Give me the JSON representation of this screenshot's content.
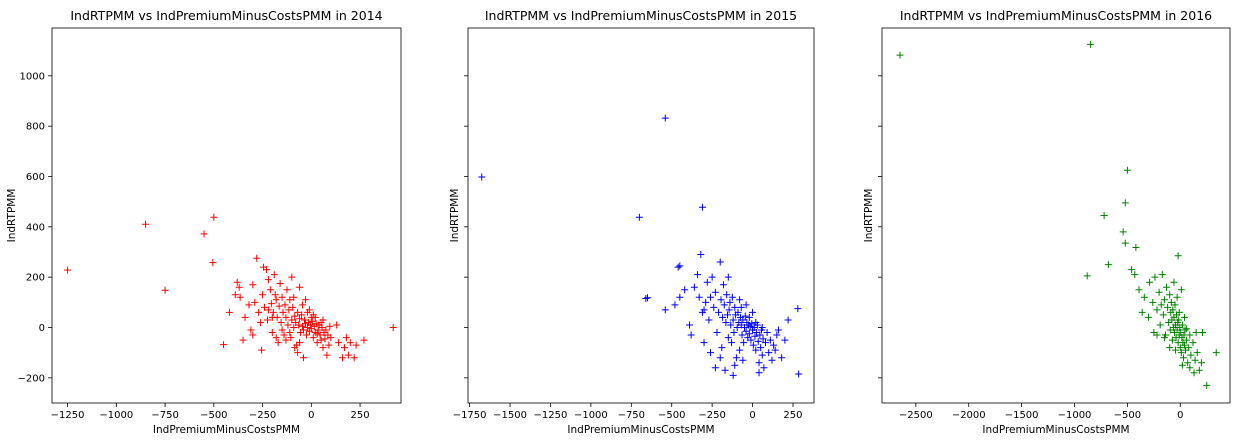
{
  "chart_data": [
    {
      "type": "scatter",
      "title": "IndRTPMM vs IndPremiumMinusCostsPMM in 2014",
      "xlabel": "IndPremiumMinusCostsPMM",
      "ylabel": "IndRTPMM",
      "xlim": [
        -1330,
        460
      ],
      "ylim": [
        -300,
        1190
      ],
      "xticks": [
        -1250,
        -1000,
        -750,
        -500,
        -250,
        0,
        250
      ],
      "yticks": [
        -200,
        0,
        200,
        400,
        600,
        800,
        1000
      ],
      "marker": "+",
      "color": "#ff0000",
      "points": [
        [
          -1250,
          228
        ],
        [
          -850,
          410
        ],
        [
          -750,
          148
        ],
        [
          -550,
          372
        ],
        [
          -500,
          438
        ],
        [
          -505,
          258
        ],
        [
          -450,
          -68
        ],
        [
          -420,
          60
        ],
        [
          -390,
          130
        ],
        [
          -380,
          180
        ],
        [
          -370,
          160
        ],
        [
          -365,
          120
        ],
        [
          -340,
          40
        ],
        [
          -320,
          90
        ],
        [
          -310,
          -10
        ],
        [
          -300,
          170
        ],
        [
          -290,
          100
        ],
        [
          -280,
          275
        ],
        [
          -270,
          60
        ],
        [
          -260,
          20
        ],
        [
          -255,
          -90
        ],
        [
          -250,
          130
        ],
        [
          -245,
          240
        ],
        [
          -240,
          80
        ],
        [
          -230,
          230
        ],
        [
          -225,
          30
        ],
        [
          -220,
          190
        ],
        [
          -210,
          150
        ],
        [
          -205,
          95
        ],
        [
          -200,
          -20
        ],
        [
          -195,
          60
        ],
        [
          -190,
          210
        ],
        [
          -185,
          130
        ],
        [
          -180,
          110
        ],
        [
          -175,
          40
        ],
        [
          -170,
          -60
        ],
        [
          -165,
          85
        ],
        [
          -160,
          175
        ],
        [
          -155,
          20
        ],
        [
          -150,
          120
        ],
        [
          -145,
          60
        ],
        [
          -140,
          -30
        ],
        [
          -135,
          90
        ],
        [
          -130,
          40
        ],
        [
          -125,
          150
        ],
        [
          -120,
          10
        ],
        [
          -115,
          70
        ],
        [
          -110,
          110
        ],
        [
          -105,
          -40
        ],
        [
          -100,
          30
        ],
        [
          -95,
          80
        ],
        [
          -90,
          0
        ],
        [
          -85,
          45
        ],
        [
          -80,
          20
        ],
        [
          -75,
          -70
        ],
        [
          -70,
          60
        ],
        [
          -65,
          10
        ],
        [
          -60,
          35
        ],
        [
          -55,
          -20
        ],
        [
          -50,
          50
        ],
        [
          -45,
          5
        ],
        [
          -40,
          -10
        ],
        [
          -35,
          30
        ],
        [
          -30,
          15
        ],
        [
          -25,
          -30
        ],
        [
          -20,
          0
        ],
        [
          -15,
          20
        ],
        [
          -10,
          -15
        ],
        [
          -5,
          10
        ],
        [
          0,
          -5
        ],
        [
          5,
          25
        ],
        [
          10,
          -40
        ],
        [
          15,
          5
        ],
        [
          20,
          -20
        ],
        [
          25,
          15
        ],
        [
          30,
          -60
        ],
        [
          35,
          -10
        ],
        [
          40,
          10
        ],
        [
          45,
          -30
        ],
        [
          50,
          -50
        ],
        [
          55,
          0
        ],
        [
          60,
          -80
        ],
        [
          65,
          -20
        ],
        [
          70,
          -45
        ],
        [
          75,
          -10
        ],
        [
          80,
          -110
        ],
        [
          85,
          -30
        ],
        [
          90,
          -70
        ],
        [
          95,
          5
        ],
        [
          100,
          -40
        ],
        [
          -60,
          160
        ],
        [
          -30,
          110
        ],
        [
          -10,
          70
        ],
        [
          -100,
          200
        ],
        [
          -70,
          -100
        ],
        [
          -40,
          -120
        ],
        [
          -130,
          -50
        ],
        [
          -20,
          60
        ],
        [
          20,
          40
        ],
        [
          60,
          30
        ],
        [
          10,
          50
        ],
        [
          -150,
          -10
        ],
        [
          130,
          10
        ],
        [
          140,
          -60
        ],
        [
          160,
          -120
        ],
        [
          170,
          -80
        ],
        [
          180,
          -40
        ],
        [
          190,
          -110
        ],
        [
          200,
          -60
        ],
        [
          220,
          -120
        ],
        [
          230,
          -70
        ],
        [
          270,
          -50
        ],
        [
          420,
          0
        ],
        [
          -60,
          -60
        ],
        [
          -180,
          -40
        ],
        [
          -220,
          70
        ],
        [
          -300,
          -30
        ],
        [
          -350,
          -50
        ],
        [
          -200,
          40
        ],
        [
          -110,
          -20
        ],
        [
          -90,
          120
        ],
        [
          0,
          40
        ],
        [
          30,
          -25
        ],
        [
          50,
          20
        ],
        [
          -45,
          90
        ],
        [
          -85,
          -80
        ]
      ]
    },
    {
      "type": "scatter",
      "title": "IndRTPMM vs IndPremiumMinusCostsPMM in 2015",
      "xlabel": "IndPremiumMinusCostsPMM",
      "ylabel": "IndRTPMM",
      "xlim": [
        -1760,
        380
      ],
      "ylim": [
        -300,
        1190
      ],
      "xticks": [
        -1750,
        -1500,
        -1250,
        -1000,
        -750,
        -500,
        -250,
        0,
        250
      ],
      "yticks": [
        -200,
        0,
        200,
        400,
        600,
        800,
        1000
      ],
      "marker": "+",
      "color": "#0000ff",
      "points": [
        [
          -1675,
          598
        ],
        [
          -540,
          832
        ],
        [
          -700,
          438
        ],
        [
          -310,
          478
        ],
        [
          -650,
          118
        ],
        [
          -660,
          115
        ],
        [
          -460,
          240
        ],
        [
          -450,
          245
        ],
        [
          -540,
          70
        ],
        [
          -480,
          90
        ],
        [
          -450,
          120
        ],
        [
          -420,
          150
        ],
        [
          -390,
          10
        ],
        [
          -380,
          -30
        ],
        [
          -360,
          160
        ],
        [
          -340,
          210
        ],
        [
          -330,
          120
        ],
        [
          -320,
          290
        ],
        [
          -310,
          60
        ],
        [
          -300,
          -60
        ],
        [
          -290,
          100
        ],
        [
          -280,
          180
        ],
        [
          -270,
          30
        ],
        [
          -260,
          -100
        ],
        [
          -250,
          200
        ],
        [
          -240,
          80
        ],
        [
          -230,
          140
        ],
        [
          -220,
          -20
        ],
        [
          -210,
          60
        ],
        [
          -200,
          260
        ],
        [
          -195,
          110
        ],
        [
          -190,
          -80
        ],
        [
          -185,
          40
        ],
        [
          -180,
          170
        ],
        [
          -175,
          90
        ],
        [
          -170,
          -170
        ],
        [
          -165,
          20
        ],
        [
          -160,
          130
        ],
        [
          -155,
          50
        ],
        [
          -150,
          -40
        ],
        [
          -145,
          70
        ],
        [
          -140,
          100
        ],
        [
          -135,
          10
        ],
        [
          -130,
          -60
        ],
        [
          -125,
          120
        ],
        [
          -120,
          30
        ],
        [
          -115,
          -20
        ],
        [
          -110,
          80
        ],
        [
          -105,
          50
        ],
        [
          -100,
          -120
        ],
        [
          -95,
          0
        ],
        [
          -90,
          60
        ],
        [
          -85,
          20
        ],
        [
          -80,
          -90
        ],
        [
          -75,
          40
        ],
        [
          -70,
          10
        ],
        [
          -65,
          -30
        ],
        [
          -60,
          30
        ],
        [
          -55,
          -60
        ],
        [
          -50,
          0
        ],
        [
          -45,
          45
        ],
        [
          -40,
          -15
        ],
        [
          -35,
          20
        ],
        [
          -30,
          -40
        ],
        [
          -25,
          10
        ],
        [
          -20,
          -25
        ],
        [
          -15,
          5
        ],
        [
          -10,
          -50
        ],
        [
          -5,
          15
        ],
        [
          0,
          -10
        ],
        [
          5,
          -70
        ],
        [
          10,
          0
        ],
        [
          15,
          -35
        ],
        [
          20,
          -90
        ],
        [
          25,
          -20
        ],
        [
          30,
          10
        ],
        [
          35,
          -55
        ],
        [
          40,
          -140
        ],
        [
          45,
          -30
        ],
        [
          50,
          -80
        ],
        [
          55,
          -10
        ],
        [
          60,
          -110
        ],
        [
          65,
          -45
        ],
        [
          70,
          -160
        ],
        [
          80,
          -60
        ],
        [
          90,
          -20
        ],
        [
          100,
          -100
        ],
        [
          110,
          -50
        ],
        [
          120,
          -130
        ],
        [
          130,
          -70
        ],
        [
          140,
          -90
        ],
        [
          150,
          -30
        ],
        [
          160,
          -10
        ],
        [
          180,
          -120
        ],
        [
          200,
          -50
        ],
        [
          220,
          30
        ],
        [
          280,
          75
        ],
        [
          285,
          -185
        ],
        [
          -120,
          -190
        ],
        [
          -230,
          -160
        ],
        [
          -300,
          70
        ],
        [
          -260,
          120
        ],
        [
          -60,
          -130
        ],
        [
          -20,
          40
        ],
        [
          0,
          60
        ],
        [
          20,
          20
        ],
        [
          -40,
          90
        ],
        [
          -80,
          110
        ],
        [
          -150,
          200
        ],
        [
          -200,
          -120
        ],
        [
          -110,
          -150
        ],
        [
          40,
          -180
        ],
        [
          -70,
          80
        ],
        [
          60,
          0
        ]
      ]
    },
    {
      "type": "scatter",
      "title": "IndRTPMM vs IndPremiumMinusCostsPMM in 2016",
      "xlabel": "IndPremiumMinusCostsPMM",
      "ylabel": "IndRTPMM",
      "xlim": [
        -2820,
        470
      ],
      "ylim": [
        -300,
        1190
      ],
      "xticks": [
        -2500,
        -2000,
        -1500,
        -1000,
        -500,
        0
      ],
      "yticks": [
        -200,
        0,
        200,
        400,
        600,
        800,
        1000
      ],
      "marker": "+",
      "color": "#008000",
      "points": [
        [
          -2650,
          1082
        ],
        [
          -850,
          1125
        ],
        [
          -500,
          625
        ],
        [
          -520,
          495
        ],
        [
          -720,
          445
        ],
        [
          -540,
          380
        ],
        [
          -420,
          318
        ],
        [
          -880,
          205
        ],
        [
          -680,
          250
        ],
        [
          -520,
          335
        ],
        [
          -460,
          230
        ],
        [
          -430,
          210
        ],
        [
          -390,
          150
        ],
        [
          -360,
          60
        ],
        [
          -340,
          120
        ],
        [
          -300,
          40
        ],
        [
          -290,
          180
        ],
        [
          -260,
          100
        ],
        [
          -250,
          -20
        ],
        [
          -240,
          200
        ],
        [
          -220,
          70
        ],
        [
          -200,
          140
        ],
        [
          -190,
          10
        ],
        [
          -180,
          90
        ],
        [
          -170,
          210
        ],
        [
          -160,
          50
        ],
        [
          -150,
          110
        ],
        [
          -140,
          -30
        ],
        [
          -130,
          160
        ],
        [
          -120,
          80
        ],
        [
          -110,
          20
        ],
        [
          -100,
          130
        ],
        [
          -95,
          -10
        ],
        [
          -90,
          60
        ],
        [
          -85,
          100
        ],
        [
          -80,
          30
        ],
        [
          -75,
          -50
        ],
        [
          -70,
          70
        ],
        [
          -65,
          0
        ],
        [
          -60,
          40
        ],
        [
          -55,
          -20
        ],
        [
          -50,
          90
        ],
        [
          -45,
          10
        ],
        [
          -40,
          -40
        ],
        [
          -35,
          50
        ],
        [
          -30,
          -10
        ],
        [
          -25,
          20
        ],
        [
          -20,
          -60
        ],
        [
          -15,
          30
        ],
        [
          -10,
          -30
        ],
        [
          -5,
          0
        ],
        [
          0,
          -80
        ],
        [
          5,
          -20
        ],
        [
          10,
          -100
        ],
        [
          15,
          -40
        ],
        [
          20,
          10
        ],
        [
          25,
          -60
        ],
        [
          30,
          -120
        ],
        [
          35,
          -30
        ],
        [
          40,
          -70
        ],
        [
          45,
          -10
        ],
        [
          50,
          -90
        ],
        [
          60,
          -50
        ],
        [
          70,
          -140
        ],
        [
          80,
          -80
        ],
        [
          90,
          -30
        ],
        [
          100,
          -110
        ],
        [
          120,
          -60
        ],
        [
          140,
          -130
        ],
        [
          150,
          -20
        ],
        [
          160,
          -100
        ],
        [
          180,
          -170
        ],
        [
          200,
          -140
        ],
        [
          210,
          -20
        ],
        [
          250,
          -230
        ],
        [
          340,
          -100
        ],
        [
          -20,
          285
        ],
        [
          10,
          150
        ],
        [
          -60,
          180
        ],
        [
          -100,
          -80
        ],
        [
          -150,
          -40
        ],
        [
          -220,
          -30
        ],
        [
          40,
          40
        ],
        [
          -30,
          120
        ],
        [
          90,
          -160
        ],
        [
          130,
          -180
        ],
        [
          60,
          -5
        ],
        [
          -10,
          60
        ],
        [
          20,
          -150
        ],
        [
          -45,
          -90
        ]
      ]
    }
  ]
}
